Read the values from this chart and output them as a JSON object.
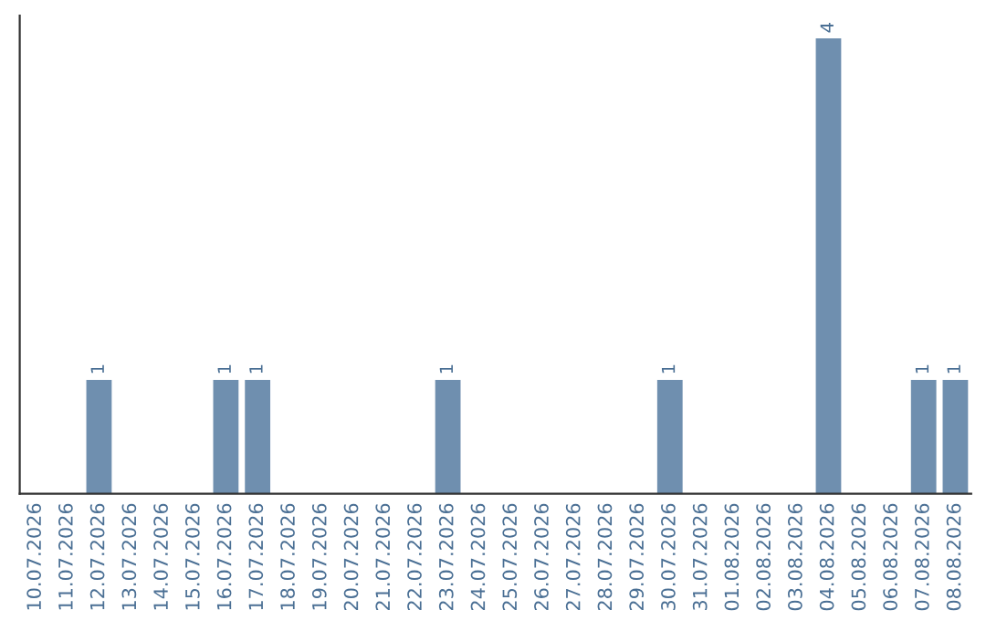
{
  "chart_data": {
    "type": "bar",
    "categories": [
      "10.07.2026",
      "11.07.2026",
      "12.07.2026",
      "13.07.2026",
      "14.07.2026",
      "15.07.2026",
      "16.07.2026",
      "17.07.2026",
      "18.07.2026",
      "19.07.2026",
      "20.07.2026",
      "21.07.2026",
      "22.07.2026",
      "23.07.2026",
      "24.07.2026",
      "25.07.2026",
      "26.07.2026",
      "27.07.2026",
      "28.07.2026",
      "29.07.2026",
      "30.07.2026",
      "31.07.2026",
      "01.08.2026",
      "02.08.2026",
      "03.08.2026",
      "04.08.2026",
      "05.08.2026",
      "06.08.2026",
      "07.08.2026",
      "08.08.2026"
    ],
    "values": [
      0,
      0,
      1,
      0,
      0,
      0,
      1,
      1,
      0,
      0,
      0,
      0,
      0,
      1,
      0,
      0,
      0,
      0,
      0,
      0,
      1,
      0,
      0,
      0,
      0,
      4,
      0,
      0,
      1,
      1
    ],
    "value_labels": [
      null,
      null,
      "1",
      null,
      null,
      null,
      "1",
      "1",
      null,
      null,
      null,
      null,
      null,
      "1",
      null,
      null,
      null,
      null,
      null,
      null,
      "1",
      null,
      null,
      null,
      null,
      "4",
      null,
      null,
      "1",
      "1"
    ],
    "color": "#6f8faf",
    "ylim": [
      0,
      4.2
    ],
    "tick_labels": "x",
    "grid": false
  }
}
